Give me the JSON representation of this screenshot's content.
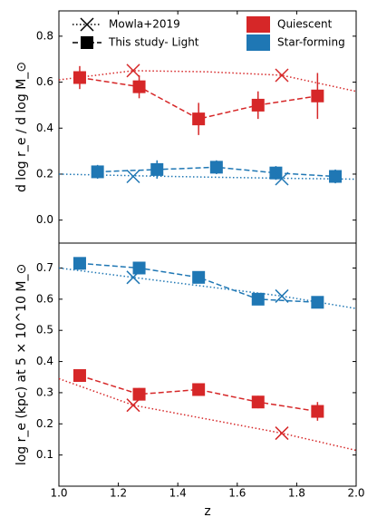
{
  "chart_data": [
    {
      "type": "scatter",
      "ylabel": "d log  r_e / d log  M_⊙",
      "xlim": [
        1.0,
        2.0
      ],
      "ylim": [
        -0.1,
        0.91
      ],
      "yticks": [
        {
          "value": 0,
          "label": "0.0"
        },
        0.2,
        0.4,
        0.6,
        0.8
      ],
      "legend": {
        "corner": "upper",
        "entries": [
          {
            "label": "Mowla+2019",
            "marker": "x"
          },
          {
            "label": "This study- Light",
            "marker": "s"
          },
          {
            "label": "Quiescent",
            "color": "#d62728"
          },
          {
            "label": "Star-forming",
            "color": "#1f77b4"
          }
        ]
      },
      "series": [
        {
          "color": "#d62728",
          "marker": "s",
          "linestyle": "dashed",
          "x": [
            1.07,
            1.27,
            1.47,
            1.67,
            1.87
          ],
          "values": [
            0.62,
            0.58,
            0.44,
            0.5,
            0.54
          ],
          "errors": [
            0.05,
            0.05,
            0.07,
            0.06,
            0.1
          ]
        },
        {
          "color": "#1f77b4",
          "marker": "s",
          "linestyle": "dashed",
          "x": [
            1.13,
            1.33,
            1.53,
            1.73,
            1.93
          ],
          "values": [
            0.21,
            0.22,
            0.23,
            0.205,
            0.19
          ],
          "errors": [
            0.03,
            0.04,
            0.03,
            0.03,
            0.03
          ]
        },
        {
          "color": "#d62728",
          "marker": "x",
          "linestyle": "none",
          "x": [
            1.25,
            1.75
          ],
          "values": [
            0.65,
            0.63
          ]
        },
        {
          "color": "#1f77b4",
          "marker": "x",
          "linestyle": "none",
          "x": [
            1.25,
            1.75
          ],
          "values": [
            0.19,
            0.18
          ]
        },
        {
          "color": "#d62728",
          "marker": "none",
          "linestyle": "dotted",
          "x": [
            1.0,
            1.25,
            1.5,
            1.75,
            2.0
          ],
          "values": [
            0.61,
            0.65,
            0.645,
            0.63,
            0.56
          ]
        },
        {
          "color": "#1f77b4",
          "marker": "none",
          "linestyle": "dotted",
          "x": [
            1.0,
            1.25,
            1.5,
            1.75,
            2.0
          ],
          "values": [
            0.2,
            0.193,
            0.187,
            0.182,
            0.178
          ]
        }
      ]
    },
    {
      "type": "scatter",
      "ylabel": "log  r_e (kpc) at 5 × 10^10 M_⊙",
      "xlabel": "z",
      "xlim": [
        1.0,
        2.0
      ],
      "xticks": [
        {
          "value": 1.0,
          "label": "1.0"
        },
        1.2,
        1.4,
        1.6,
        1.8,
        {
          "value": 2.0,
          "label": "2.0"
        }
      ],
      "ylim": [
        0.0,
        0.78
      ],
      "yticks": [
        0.1,
        0.2,
        0.3,
        0.4,
        0.5,
        0.6,
        0.7
      ],
      "series": [
        {
          "color": "#d62728",
          "marker": "s",
          "linestyle": "dashed",
          "x": [
            1.07,
            1.27,
            1.47,
            1.67,
            1.87
          ],
          "values": [
            0.355,
            0.295,
            0.31,
            0.27,
            0.24
          ],
          "errors": [
            0.015,
            0.02,
            0.02,
            0.02,
            0.03
          ]
        },
        {
          "color": "#1f77b4",
          "marker": "s",
          "linestyle": "dashed",
          "x": [
            1.07,
            1.27,
            1.47,
            1.67,
            1.87
          ],
          "values": [
            0.715,
            0.7,
            0.67,
            0.6,
            0.59
          ],
          "errors": [
            0.01,
            0.01,
            0.01,
            0.015,
            0.01
          ]
        },
        {
          "color": "#d62728",
          "marker": "x",
          "linestyle": "none",
          "x": [
            1.25,
            1.75
          ],
          "values": [
            0.26,
            0.17
          ]
        },
        {
          "color": "#1f77b4",
          "marker": "x",
          "linestyle": "none",
          "x": [
            1.25,
            1.75
          ],
          "values": [
            0.67,
            0.61
          ]
        },
        {
          "color": "#d62728",
          "marker": "none",
          "linestyle": "dotted",
          "x": [
            1.0,
            1.25,
            1.5,
            1.75,
            2.0
          ],
          "values": [
            0.345,
            0.26,
            0.215,
            0.17,
            0.115
          ]
        },
        {
          "color": "#1f77b4",
          "marker": "none",
          "linestyle": "dotted",
          "x": [
            1.0,
            1.25,
            1.5,
            1.75,
            2.0
          ],
          "values": [
            0.7,
            0.67,
            0.64,
            0.61,
            0.57
          ]
        }
      ]
    }
  ]
}
